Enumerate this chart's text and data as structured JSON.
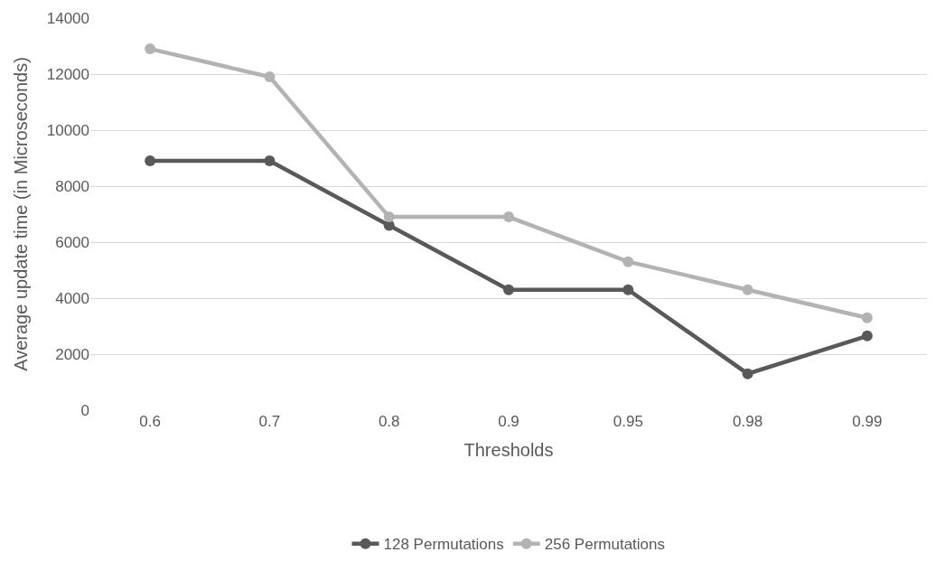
{
  "chart_data": {
    "type": "line",
    "xlabel": "Thresholds",
    "ylabel": "Average update time (in Microseconds)",
    "categories": [
      "0.6",
      "0.7",
      "0.8",
      "0.9",
      "0.95",
      "0.98",
      "0.99"
    ],
    "series": [
      {
        "name": "128 Permutations",
        "color": "#595959",
        "values": [
          8900,
          8900,
          6600,
          4300,
          4300,
          1300,
          2650
        ]
      },
      {
        "name": "256 Permutations",
        "color": "#b3b3b3",
        "values": [
          12900,
          11900,
          6900,
          6900,
          5300,
          4300,
          3300
        ]
      }
    ],
    "ylim": [
      0,
      14000
    ],
    "yticks": [
      0,
      2000,
      4000,
      6000,
      8000,
      10000,
      12000,
      14000
    ],
    "grid": "y",
    "legend": "bottom",
    "marker": "circle",
    "line_style": "solid"
  }
}
